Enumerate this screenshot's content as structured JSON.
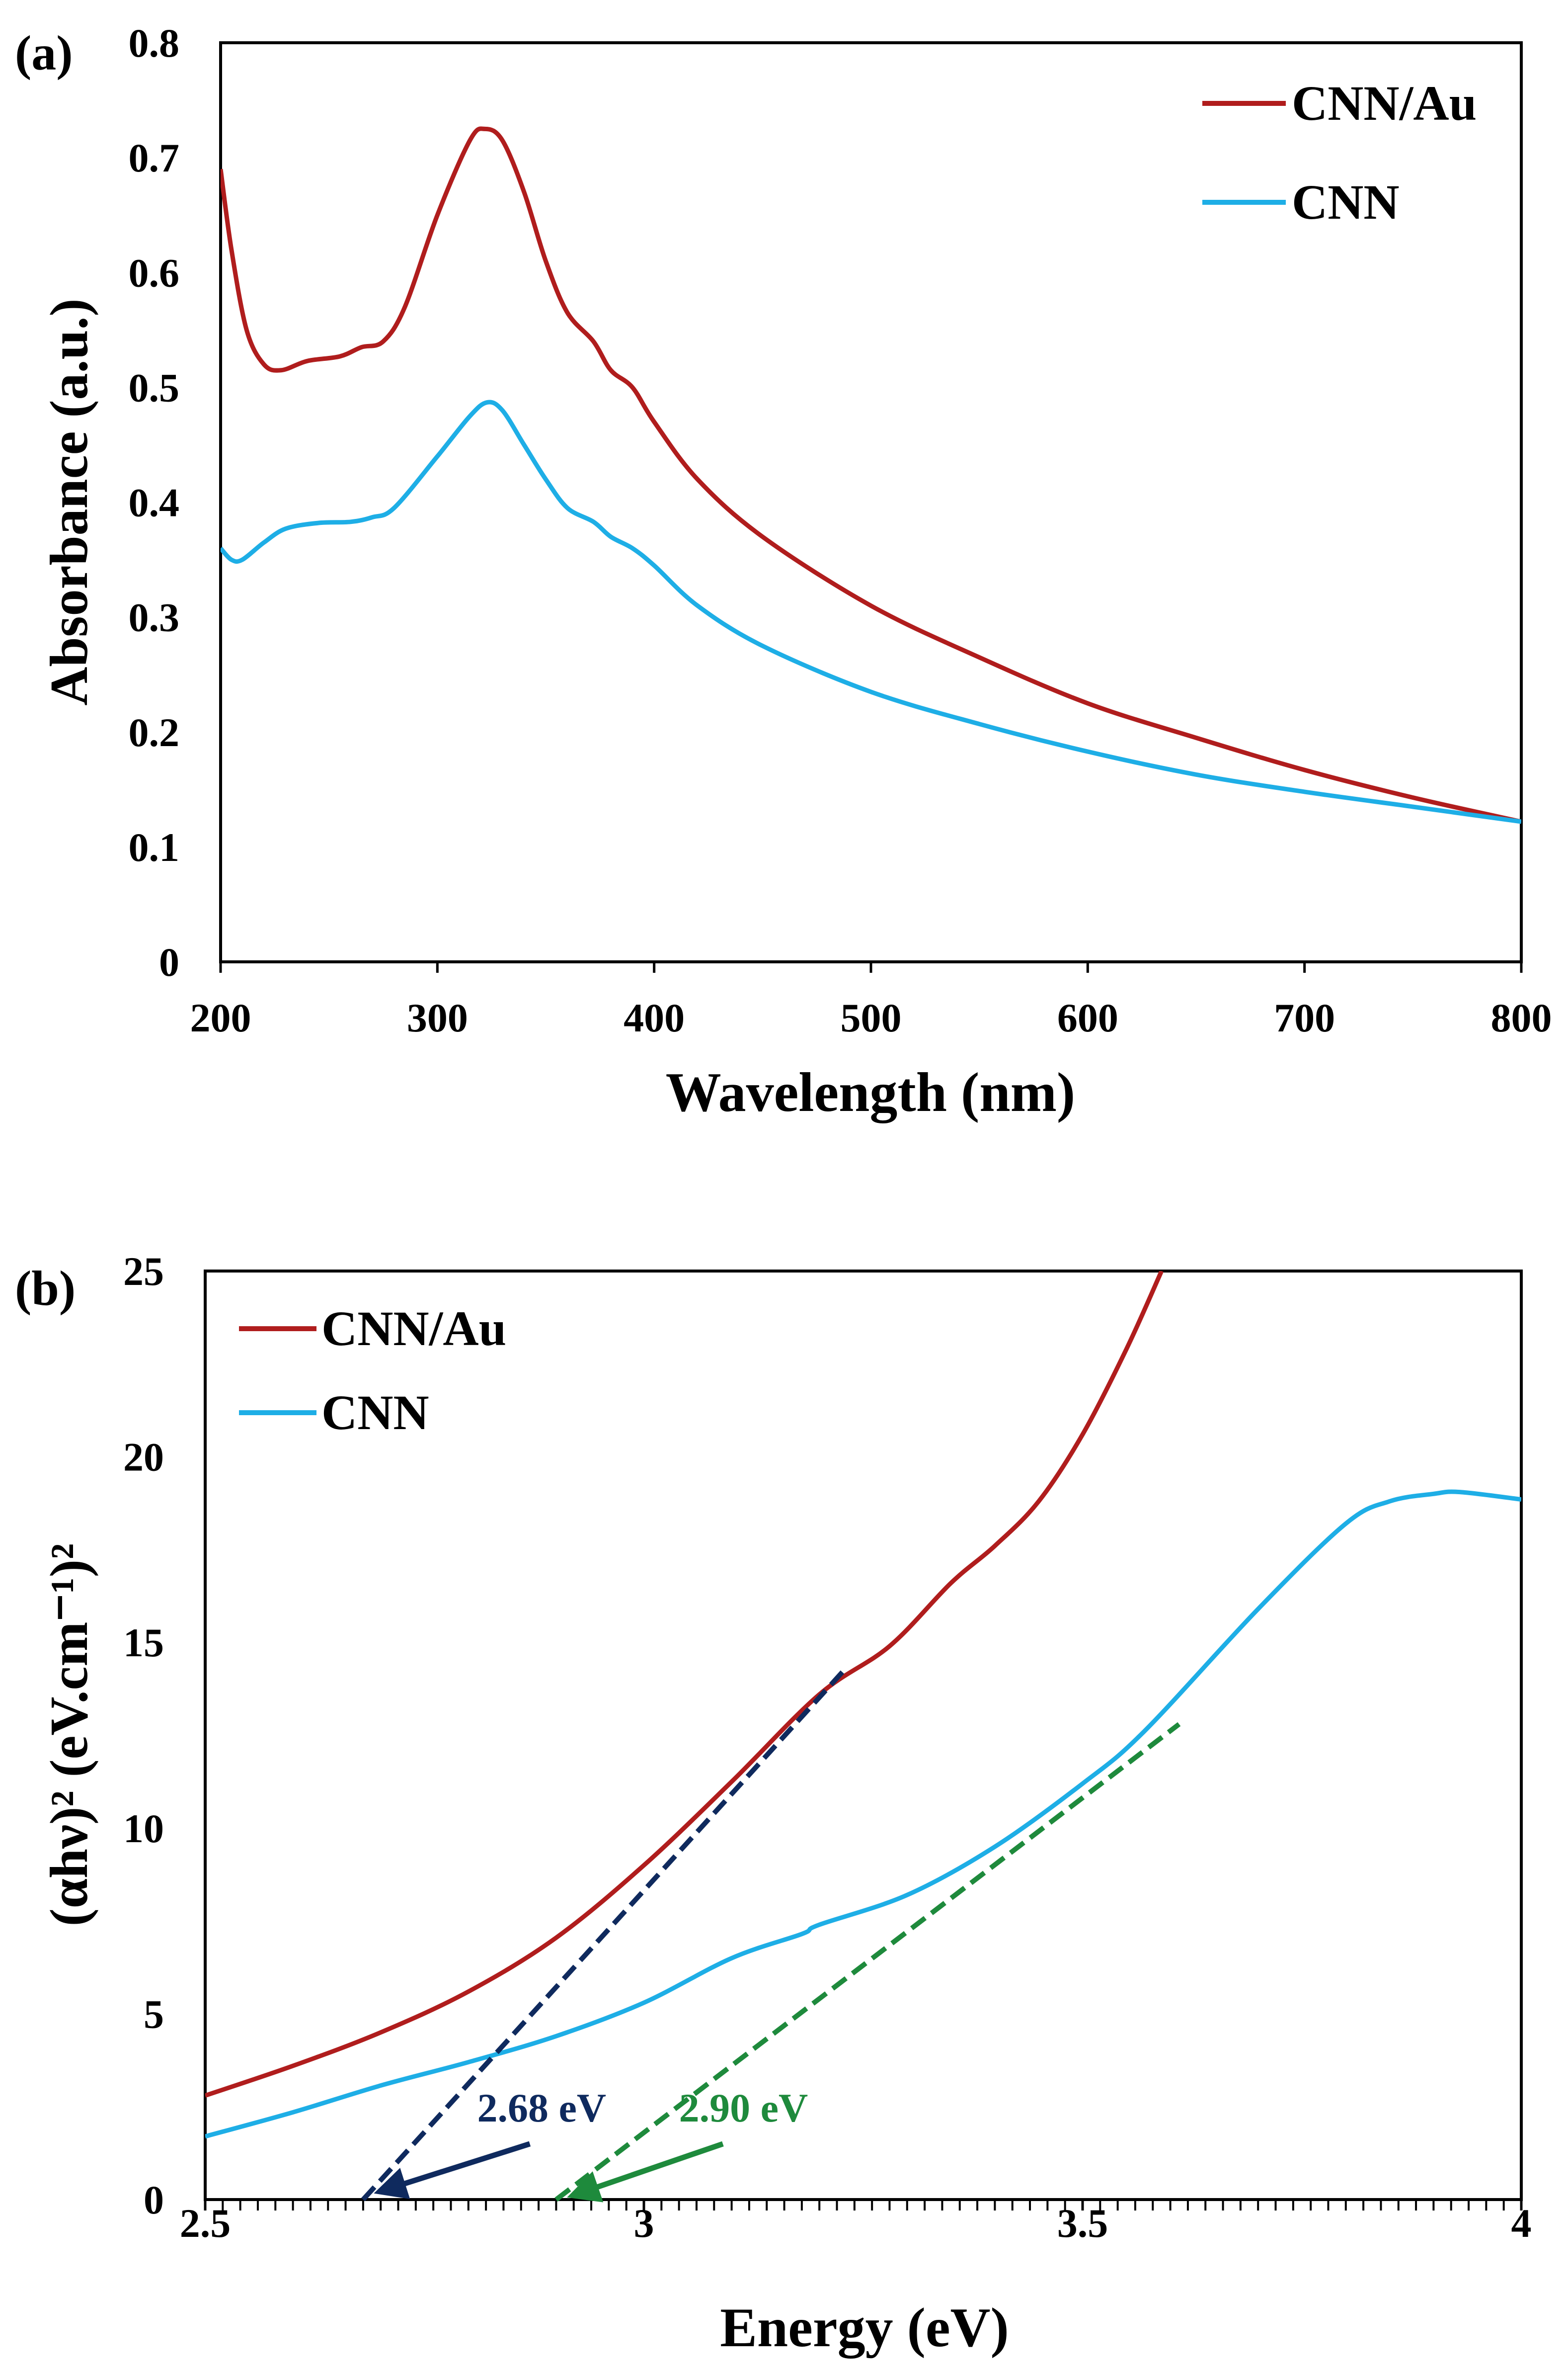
{
  "chart_data": [
    {
      "type": "line",
      "panel_label": "(a)",
      "xlabel": "Wavelength (nm)",
      "ylabel": "Absorbance (a.u.)",
      "xlim": [
        200,
        800
      ],
      "ylim": [
        0,
        0.8
      ],
      "xticks": [
        "200",
        "300",
        "400",
        "500",
        "600",
        "700",
        "800"
      ],
      "yticks": [
        "0",
        "0.1",
        "0.2",
        "0.3",
        "0.4",
        "0.5",
        "0.6",
        "0.7",
        "0.8"
      ],
      "legend_position": "top-right",
      "series": [
        {
          "name": "CNN/Au",
          "color": "#b01d1d",
          "x": [
            200,
            205,
            212,
            220,
            228,
            240,
            255,
            265,
            275,
            285,
            300,
            315,
            322,
            330,
            340,
            350,
            360,
            372,
            380,
            390,
            400,
            420,
            450,
            500,
            550,
            600,
            650,
            700,
            750,
            800
          ],
          "y": [
            0.69,
            0.62,
            0.55,
            0.52,
            0.515,
            0.523,
            0.527,
            0.535,
            0.54,
            0.57,
            0.65,
            0.715,
            0.725,
            0.715,
            0.67,
            0.61,
            0.565,
            0.54,
            0.515,
            0.5,
            0.47,
            0.42,
            0.37,
            0.31,
            0.265,
            0.225,
            0.195,
            0.167,
            0.143,
            0.122
          ]
        },
        {
          "name": "CNN",
          "color": "#1eaee6",
          "x": [
            200,
            205,
            210,
            220,
            230,
            245,
            260,
            270,
            280,
            300,
            315,
            323,
            330,
            340,
            350,
            360,
            372,
            380,
            390,
            400,
            420,
            450,
            500,
            550,
            600,
            650,
            700,
            750,
            800
          ],
          "y": [
            0.36,
            0.35,
            0.35,
            0.365,
            0.377,
            0.382,
            0.383,
            0.387,
            0.395,
            0.44,
            0.475,
            0.487,
            0.48,
            0.45,
            0.42,
            0.395,
            0.383,
            0.37,
            0.36,
            0.345,
            0.31,
            0.275,
            0.235,
            0.207,
            0.183,
            0.163,
            0.148,
            0.135,
            0.122
          ]
        }
      ]
    },
    {
      "type": "line",
      "panel_label": "(b)",
      "xlabel": "Energy (eV)",
      "ylabel": "(αhν)² (eV.cm⁻¹)²",
      "xlim": [
        2.5,
        4
      ],
      "ylim": [
        0,
        25
      ],
      "xticks": [
        "2.5",
        "3",
        "3.5",
        "4"
      ],
      "yticks": [
        "0",
        "5",
        "10",
        "15",
        "20",
        "25"
      ],
      "legend_position": "top-left",
      "series": [
        {
          "name": "CNN/Au",
          "color": "#b01d1d",
          "x": [
            2.5,
            2.6,
            2.7,
            2.8,
            2.9,
            3.0,
            3.1,
            3.2,
            3.28,
            3.35,
            3.4,
            3.45,
            3.5,
            3.55,
            3.59
          ],
          "y": [
            2.8,
            3.6,
            4.5,
            5.6,
            7.05,
            9.0,
            11.25,
            13.6,
            14.9,
            16.6,
            17.6,
            18.8,
            20.6,
            22.9,
            25
          ]
        },
        {
          "name": "CNN",
          "color": "#1eaee6",
          "x": [
            2.5,
            2.6,
            2.7,
            2.8,
            2.9,
            3.0,
            3.1,
            3.18,
            3.2,
            3.3,
            3.4,
            3.5,
            3.57,
            3.7,
            3.8,
            3.85,
            3.9,
            3.93,
            4.0
          ],
          "y": [
            1.7,
            2.35,
            3.07,
            3.7,
            4.4,
            5.3,
            6.5,
            7.15,
            7.4,
            8.2,
            9.5,
            11.2,
            12.6,
            15.9,
            18.2,
            18.8,
            19.0,
            19.05,
            18.85
          ]
        }
      ],
      "annotations": [
        {
          "text": "2.68 eV",
          "color": "#0f2a5e",
          "fit_line": {
            "x": [
              2.68,
              3.23
            ],
            "y": [
              0,
              14.3
            ]
          },
          "arrow": {
            "from": [
              2.87,
              1.5
            ],
            "to": [
              2.71,
              0.3
            ]
          },
          "label_at": [
            2.81,
            2.5
          ]
        },
        {
          "text": "2.90 eV",
          "color": "#1e8a3c",
          "fit_line": {
            "x": [
              2.9,
              3.61
            ],
            "y": [
              0,
              12.8
            ]
          },
          "arrow": {
            "from": [
              3.09,
              1.5
            ],
            "to": [
              2.93,
              0.2
            ]
          },
          "label_at": [
            3.04,
            2.5
          ]
        }
      ]
    }
  ]
}
